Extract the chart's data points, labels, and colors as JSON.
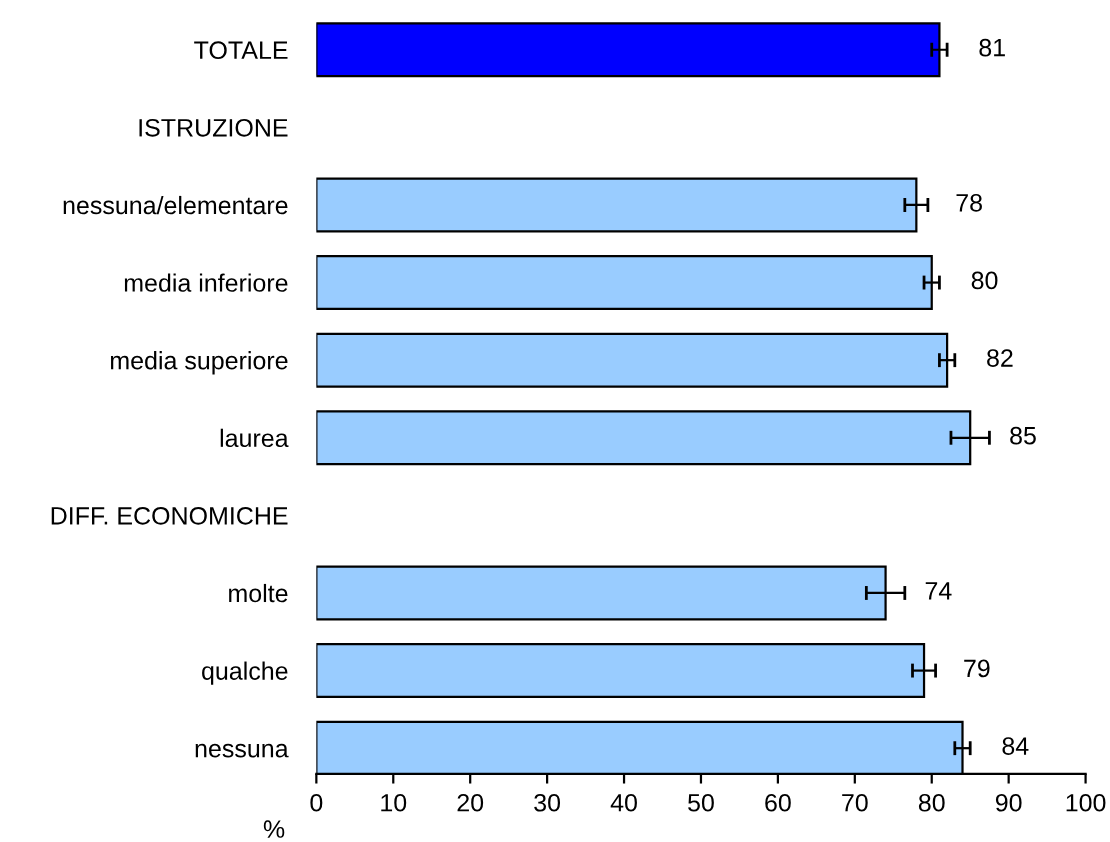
{
  "chart_data": {
    "type": "bar",
    "orientation": "horizontal",
    "xlabel": "%",
    "categories": [
      "TOTALE",
      "ISTRUZIONE",
      "nessuna/elementare",
      "media inferiore",
      "media superiore",
      "laurea",
      "DIFF. ECONOMICHE",
      "molte",
      "qualche",
      "nessuna"
    ],
    "values": [
      81,
      null,
      78,
      80,
      82,
      85,
      null,
      74,
      79,
      84
    ],
    "errors": [
      1,
      null,
      1.5,
      1,
      1,
      2.5,
      null,
      2.5,
      1.5,
      1
    ],
    "colors": [
      "#0000ff",
      null,
      "#99ccff",
      "#99ccff",
      "#99ccff",
      "#99ccff",
      null,
      "#99ccff",
      "#99ccff",
      "#99ccff"
    ],
    "data_labels": true,
    "xlim": [
      0,
      100
    ],
    "xticks": [
      0,
      10,
      20,
      30,
      40,
      50,
      60,
      70,
      80,
      90,
      100
    ],
    "grid": false,
    "legend": false
  }
}
